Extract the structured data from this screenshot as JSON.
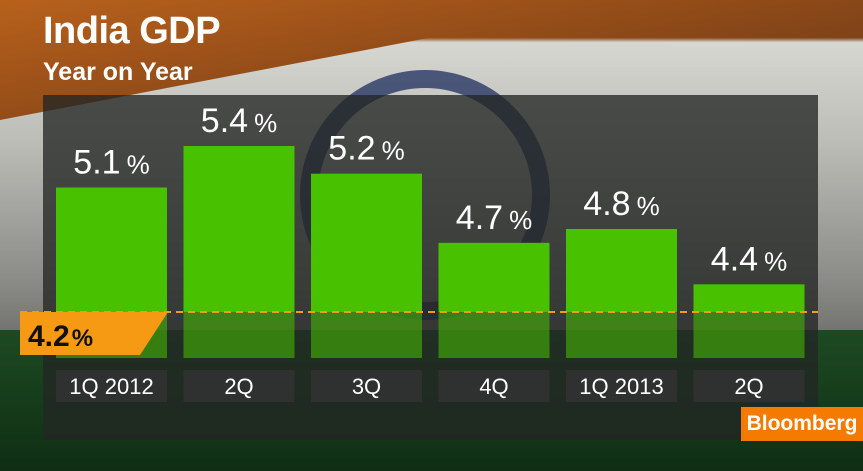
{
  "title": "India GDP",
  "subtitle": "Year on Year",
  "brand": "Bloomberg",
  "colors": {
    "bar": "#47c100",
    "reference": "#f59a12",
    "brand": "#f47b00"
  },
  "chart_data": {
    "type": "bar",
    "title": "India GDP",
    "subtitle": "Year on Year",
    "categories": [
      "1Q 2012",
      "2Q",
      "3Q",
      "4Q",
      "1Q 2013",
      "2Q"
    ],
    "values": [
      5.1,
      5.4,
      5.2,
      4.7,
      4.8,
      4.4
    ],
    "labels": [
      "5.1",
      "5.4",
      "5.2",
      "4.7",
      "4.8",
      "4.4"
    ],
    "unit": "%",
    "reference": {
      "value": 4.2,
      "label": "4.2"
    },
    "xlabel": "",
    "ylabel": "",
    "grid": false,
    "legend": "none"
  }
}
